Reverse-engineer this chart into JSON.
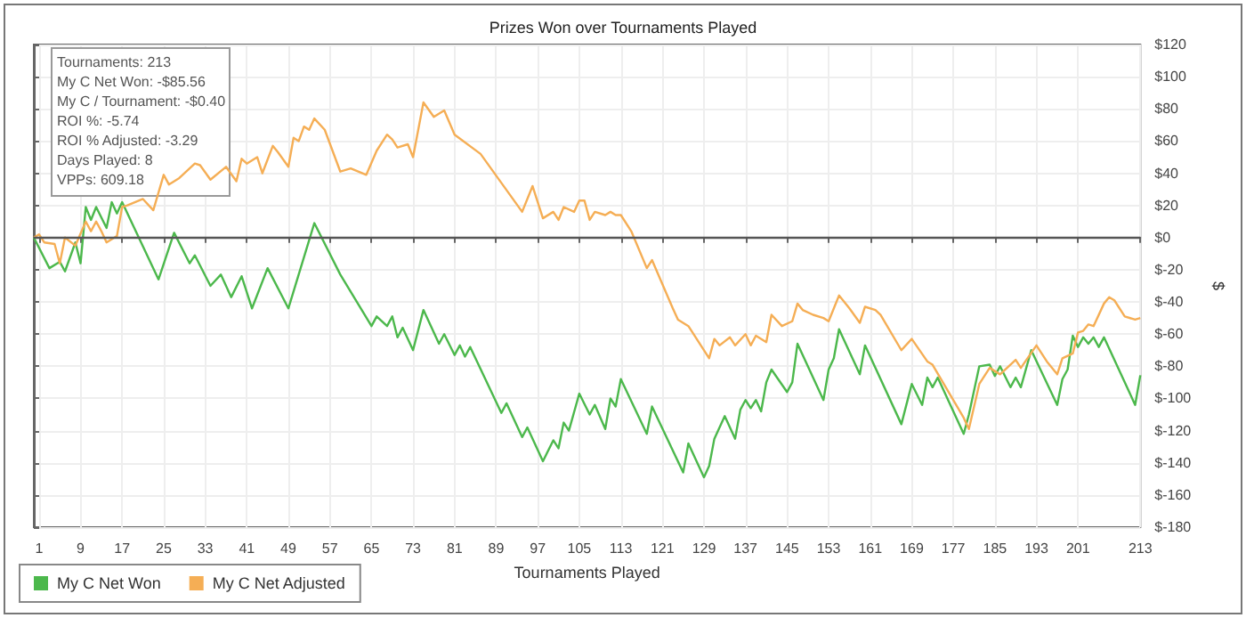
{
  "chart_data": {
    "type": "line",
    "title": "Prizes Won over Tournaments Played",
    "xlabel": "Tournaments Played",
    "ylabel": "$",
    "annotations": [
      "Tournaments: 213",
      "My C Net Won: -$85.56",
      "My C / Tournament: -$0.40",
      "ROI %: -5.74",
      "ROI % Adjusted: -3.29",
      "Days Played: 8",
      "VPPs: 609.18"
    ],
    "series": [
      {
        "name": "My C Net Won",
        "color": "#4cb84c",
        "x": [
          0,
          3,
          5,
          6,
          8,
          9,
          10,
          11,
          12,
          14,
          15,
          16,
          17,
          24,
          27,
          30,
          31,
          34,
          36,
          38,
          40,
          42,
          45,
          49,
          54,
          59,
          65,
          66,
          68,
          69,
          70,
          71,
          73,
          75,
          78,
          79,
          81,
          82,
          83,
          84,
          90,
          91,
          94,
          95,
          98,
          100,
          101,
          102,
          103,
          105,
          107,
          108,
          110,
          111,
          112,
          113,
          118,
          119,
          125,
          126,
          129,
          130,
          131,
          133,
          135,
          136,
          137,
          138,
          139,
          140,
          141,
          142,
          145,
          146,
          147,
          152,
          153,
          154,
          155,
          159,
          160,
          167,
          169,
          171,
          172,
          173,
          174,
          179,
          180,
          182,
          184,
          185,
          186,
          188,
          189,
          190,
          192,
          197,
          198,
          199,
          200,
          201,
          202,
          203,
          204,
          205,
          206,
          212,
          213
        ],
        "values": [
          0,
          -19,
          -15,
          -21,
          -3,
          -16,
          19,
          11,
          19,
          6,
          22,
          15,
          22,
          -26,
          3,
          -16,
          -11,
          -30,
          -23,
          -37,
          -24,
          -44,
          -19,
          -44,
          9,
          -23,
          -55,
          -49,
          -55,
          -49,
          -62,
          -56,
          -70,
          -45,
          -66,
          -60,
          -73,
          -67,
          -74,
          -68,
          -109,
          -103,
          -124,
          -118,
          -139,
          -126,
          -131,
          -115,
          -120,
          -97,
          -110,
          -104,
          -119,
          -100,
          -105,
          -88,
          -122,
          -105,
          -146,
          -128,
          -149,
          -142,
          -125,
          -111,
          -125,
          -107,
          -101,
          -106,
          -101,
          -108,
          -90,
          -82,
          -96,
          -90,
          -66,
          -101,
          -82,
          -75,
          -57,
          -85,
          -67,
          -116,
          -91,
          -104,
          -87,
          -93,
          -87,
          -122,
          -110,
          -80,
          -79,
          -86,
          -80,
          -93,
          -87,
          -93,
          -70,
          -104,
          -88,
          -82,
          -61,
          -68,
          -62,
          -66,
          -62,
          -68,
          -62,
          -104,
          -85.56
        ]
      },
      {
        "name": "My C Net Adjusted",
        "color": "#f5ae55",
        "x": [
          0,
          1,
          2,
          4,
          5,
          6,
          8,
          10,
          11,
          12,
          13,
          14,
          16,
          17,
          18,
          21,
          23,
          25,
          26,
          28,
          31,
          32,
          34,
          37,
          39,
          40,
          41,
          43,
          44,
          46,
          47,
          49,
          50,
          51,
          52,
          53,
          54,
          56,
          59,
          61,
          64,
          66,
          68,
          69,
          70,
          72,
          73,
          75,
          77,
          79,
          81,
          86,
          90,
          94,
          96,
          98,
          100,
          101,
          102,
          104,
          105,
          106,
          107,
          108,
          110,
          111,
          112,
          113,
          115,
          118,
          119,
          123,
          124,
          126,
          130,
          131,
          132,
          134,
          135,
          137,
          138,
          139,
          141,
          142,
          144,
          146,
          147,
          148,
          150,
          152,
          153,
          154,
          155,
          157,
          159,
          160,
          162,
          163,
          167,
          169,
          172,
          173,
          179,
          180,
          182,
          184,
          186,
          189,
          190,
          193,
          195,
          197,
          198,
          200,
          201,
          202,
          203,
          204,
          206,
          207,
          208,
          210,
          212,
          213
        ],
        "values": [
          0,
          2,
          -3,
          -4,
          -16,
          0,
          -5,
          10,
          4,
          10,
          4,
          -3,
          1,
          19,
          20,
          24,
          17,
          39,
          33,
          37,
          46,
          45,
          36,
          44,
          35,
          49,
          46,
          50,
          40,
          57,
          53,
          44,
          62,
          60,
          69,
          67,
          74,
          67,
          41,
          43,
          39,
          54,
          64,
          61,
          56,
          58,
          50,
          84,
          75,
          79,
          64,
          52,
          34,
          16,
          32,
          12,
          16,
          11,
          19,
          16,
          23,
          23,
          11,
          16,
          14,
          16,
          14,
          14,
          4,
          -19,
          -14,
          -44,
          -51,
          -55,
          -75,
          -63,
          -67,
          -62,
          -67,
          -60,
          -67,
          -61,
          -65,
          -48,
          -55,
          -52,
          -41,
          -45,
          -48,
          -50,
          -52,
          -44,
          -36,
          -44,
          -53,
          -43,
          -45,
          -48,
          -70,
          -63,
          -77,
          -79,
          -112,
          -119,
          -91,
          -81,
          -85,
          -76,
          -81,
          -67,
          -77,
          -85,
          -75,
          -72,
          -59,
          -58,
          -54,
          -55,
          -41,
          -37,
          -39,
          -49,
          -51,
          -50
        ]
      }
    ],
    "xlim": [
      0,
      213
    ],
    "xticks": [
      1,
      9,
      17,
      25,
      33,
      41,
      49,
      57,
      65,
      73,
      81,
      89,
      97,
      105,
      113,
      121,
      129,
      137,
      145,
      153,
      161,
      169,
      177,
      185,
      193,
      201,
      213
    ],
    "ylim": [
      -180,
      120
    ],
    "yticks": [
      {
        "value": -180,
        "label": "$-180"
      },
      {
        "value": -160,
        "label": "$-160"
      },
      {
        "value": -140,
        "label": "$-140"
      },
      {
        "value": -120,
        "label": "$-120"
      },
      {
        "value": -100,
        "label": "$-100"
      },
      {
        "value": -80,
        "label": "$-80"
      },
      {
        "value": -60,
        "label": "$-60"
      },
      {
        "value": -40,
        "label": "$-40"
      },
      {
        "value": -20,
        "label": "$-20"
      },
      {
        "value": 0,
        "label": "$0"
      },
      {
        "value": 20,
        "label": "$20"
      },
      {
        "value": 40,
        "label": "$40"
      },
      {
        "value": 60,
        "label": "$60"
      },
      {
        "value": 80,
        "label": "$80"
      },
      {
        "value": 100,
        "label": "$100"
      },
      {
        "value": 120,
        "label": "$120"
      }
    ],
    "ref_lines": [
      {
        "axis": "y",
        "value": 0,
        "color": "#555555"
      }
    ],
    "grid": true,
    "legend": "bottom left",
    "marker": "none",
    "line_style": "solid"
  }
}
